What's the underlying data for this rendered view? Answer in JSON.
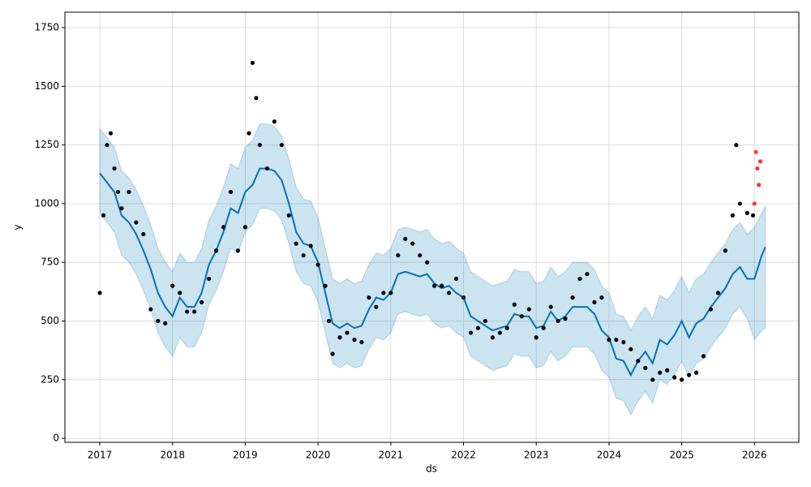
{
  "chart_data": {
    "type": "forecast",
    "xlabel": "ds",
    "ylabel": "y",
    "xlim": [
      2016.52,
      2026.61
    ],
    "ylim": [
      -17,
      1816
    ],
    "xticks": [
      2017,
      2018,
      2019,
      2020,
      2021,
      2022,
      2023,
      2024,
      2025,
      2026
    ],
    "yticks": [
      0,
      250,
      500,
      750,
      1000,
      1250,
      1500,
      1750
    ],
    "grid": true,
    "forecast": {
      "color": "#0072b2",
      "band_color": "#0072b2",
      "x": [
        2017.0,
        2017.1,
        2017.2,
        2017.3,
        2017.4,
        2017.5,
        2017.6,
        2017.7,
        2017.8,
        2017.9,
        2018.0,
        2018.1,
        2018.2,
        2018.3,
        2018.4,
        2018.5,
        2018.6,
        2018.7,
        2018.8,
        2018.9,
        2019.0,
        2019.1,
        2019.2,
        2019.3,
        2019.4,
        2019.5,
        2019.6,
        2019.7,
        2019.8,
        2019.9,
        2020.0,
        2020.1,
        2020.2,
        2020.3,
        2020.4,
        2020.5,
        2020.6,
        2020.7,
        2020.8,
        2020.9,
        2021.0,
        2021.1,
        2021.2,
        2021.3,
        2021.4,
        2021.5,
        2021.6,
        2021.7,
        2021.8,
        2021.9,
        2022.0,
        2022.1,
        2022.2,
        2022.3,
        2022.4,
        2022.5,
        2022.6,
        2022.7,
        2022.8,
        2022.9,
        2023.0,
        2023.1,
        2023.2,
        2023.3,
        2023.4,
        2023.5,
        2023.6,
        2023.7,
        2023.8,
        2023.9,
        2024.0,
        2024.1,
        2024.2,
        2024.3,
        2024.4,
        2024.5,
        2024.6,
        2024.7,
        2024.8,
        2024.9,
        2025.0,
        2025.1,
        2025.2,
        2025.3,
        2025.4,
        2025.5,
        2025.6,
        2025.7,
        2025.8,
        2025.9,
        2026.0,
        2026.1,
        2026.15
      ],
      "values": [
        1130,
        1090,
        1050,
        950,
        920,
        870,
        800,
        720,
        620,
        560,
        520,
        600,
        560,
        560,
        620,
        740,
        800,
        880,
        980,
        960,
        1050,
        1080,
        1150,
        1150,
        1140,
        1100,
        1000,
        880,
        830,
        820,
        750,
        620,
        490,
        470,
        490,
        470,
        480,
        550,
        600,
        590,
        620,
        700,
        710,
        700,
        690,
        700,
        660,
        640,
        650,
        620,
        600,
        520,
        500,
        480,
        460,
        470,
        480,
        530,
        520,
        520,
        470,
        480,
        540,
        500,
        520,
        560,
        560,
        560,
        530,
        460,
        430,
        340,
        330,
        270,
        330,
        370,
        320,
        420,
        400,
        440,
        500,
        430,
        490,
        510,
        560,
        600,
        640,
        700,
        730,
        680,
        680,
        780,
        815
      ],
      "upper": [
        1320,
        1280,
        1240,
        1140,
        1110,
        1060,
        990,
        910,
        810,
        750,
        710,
        790,
        750,
        750,
        810,
        930,
        990,
        1070,
        1170,
        1150,
        1240,
        1270,
        1340,
        1340,
        1330,
        1290,
        1190,
        1070,
        1020,
        1010,
        940,
        810,
        680,
        660,
        680,
        660,
        670,
        740,
        790,
        780,
        810,
        890,
        900,
        890,
        880,
        890,
        850,
        830,
        840,
        810,
        790,
        710,
        690,
        670,
        650,
        660,
        670,
        720,
        710,
        710,
        660,
        670,
        730,
        690,
        710,
        750,
        750,
        750,
        720,
        650,
        620,
        530,
        520,
        460,
        520,
        560,
        510,
        610,
        590,
        630,
        690,
        620,
        680,
        700,
        750,
        790,
        830,
        890,
        920,
        870,
        900,
        960,
        990
      ],
      "lower": [
        960,
        920,
        880,
        780,
        750,
        700,
        630,
        550,
        450,
        390,
        350,
        430,
        390,
        390,
        450,
        570,
        630,
        710,
        810,
        790,
        880,
        910,
        980,
        980,
        970,
        930,
        830,
        710,
        660,
        650,
        580,
        450,
        320,
        300,
        320,
        300,
        310,
        380,
        430,
        420,
        450,
        530,
        540,
        530,
        520,
        530,
        490,
        470,
        480,
        450,
        430,
        350,
        330,
        310,
        290,
        300,
        310,
        360,
        350,
        350,
        300,
        310,
        370,
        330,
        350,
        390,
        390,
        390,
        360,
        290,
        260,
        170,
        160,
        100,
        160,
        200,
        150,
        250,
        230,
        270,
        330,
        260,
        320,
        340,
        390,
        430,
        470,
        530,
        560,
        510,
        420,
        460,
        470
      ]
    },
    "observed": {
      "color": "#000000",
      "x": [
        2017.0,
        2017.05,
        2017.1,
        2017.15,
        2017.2,
        2017.25,
        2017.3,
        2017.4,
        2017.5,
        2017.6,
        2017.7,
        2017.8,
        2017.9,
        2018.0,
        2018.1,
        2018.2,
        2018.3,
        2018.4,
        2018.5,
        2018.6,
        2018.7,
        2018.8,
        2018.9,
        2019.0,
        2019.05,
        2019.1,
        2019.15,
        2019.2,
        2019.3,
        2019.4,
        2019.5,
        2019.6,
        2019.7,
        2019.8,
        2019.9,
        2020.0,
        2020.1,
        2020.15,
        2020.2,
        2020.3,
        2020.4,
        2020.5,
        2020.6,
        2020.7,
        2020.8,
        2020.9,
        2021.0,
        2021.1,
        2021.2,
        2021.3,
        2021.4,
        2021.5,
        2021.6,
        2021.7,
        2021.8,
        2021.9,
        2022.0,
        2022.1,
        2022.2,
        2022.3,
        2022.4,
        2022.5,
        2022.6,
        2022.7,
        2022.8,
        2022.9,
        2023.0,
        2023.1,
        2023.2,
        2023.3,
        2023.4,
        2023.5,
        2023.6,
        2023.7,
        2023.8,
        2023.9,
        2024.0,
        2024.1,
        2024.2,
        2024.3,
        2024.4,
        2024.5,
        2024.6,
        2024.7,
        2024.8,
        2024.9,
        2025.0,
        2025.1,
        2025.2,
        2025.3,
        2025.4,
        2025.5,
        2025.6,
        2025.7,
        2025.75,
        2025.8,
        2025.9,
        2025.98
      ],
      "values": [
        620,
        950,
        1250,
        1300,
        1150,
        1050,
        980,
        1050,
        920,
        870,
        550,
        500,
        490,
        650,
        620,
        540,
        540,
        580,
        680,
        800,
        900,
        1050,
        800,
        900,
        1300,
        1600,
        1450,
        1250,
        1150,
        1350,
        1250,
        950,
        830,
        780,
        820,
        740,
        650,
        500,
        360,
        430,
        450,
        420,
        410,
        600,
        560,
        620,
        620,
        780,
        850,
        830,
        780,
        750,
        650,
        650,
        620,
        680,
        600,
        450,
        470,
        500,
        430,
        450,
        470,
        570,
        520,
        550,
        430,
        470,
        560,
        500,
        510,
        600,
        680,
        700,
        580,
        600,
        420,
        420,
        410,
        380,
        330,
        300,
        250,
        280,
        290,
        260,
        250,
        270,
        280,
        350,
        550,
        620,
        800,
        950,
        1250,
        1000,
        960,
        950
      ]
    },
    "future_observed": {
      "color": "#ff3333",
      "x": [
        2026.0,
        2026.02,
        2026.04,
        2026.06,
        2026.08
      ],
      "values": [
        1000,
        1220,
        1150,
        1080,
        1180
      ]
    }
  }
}
